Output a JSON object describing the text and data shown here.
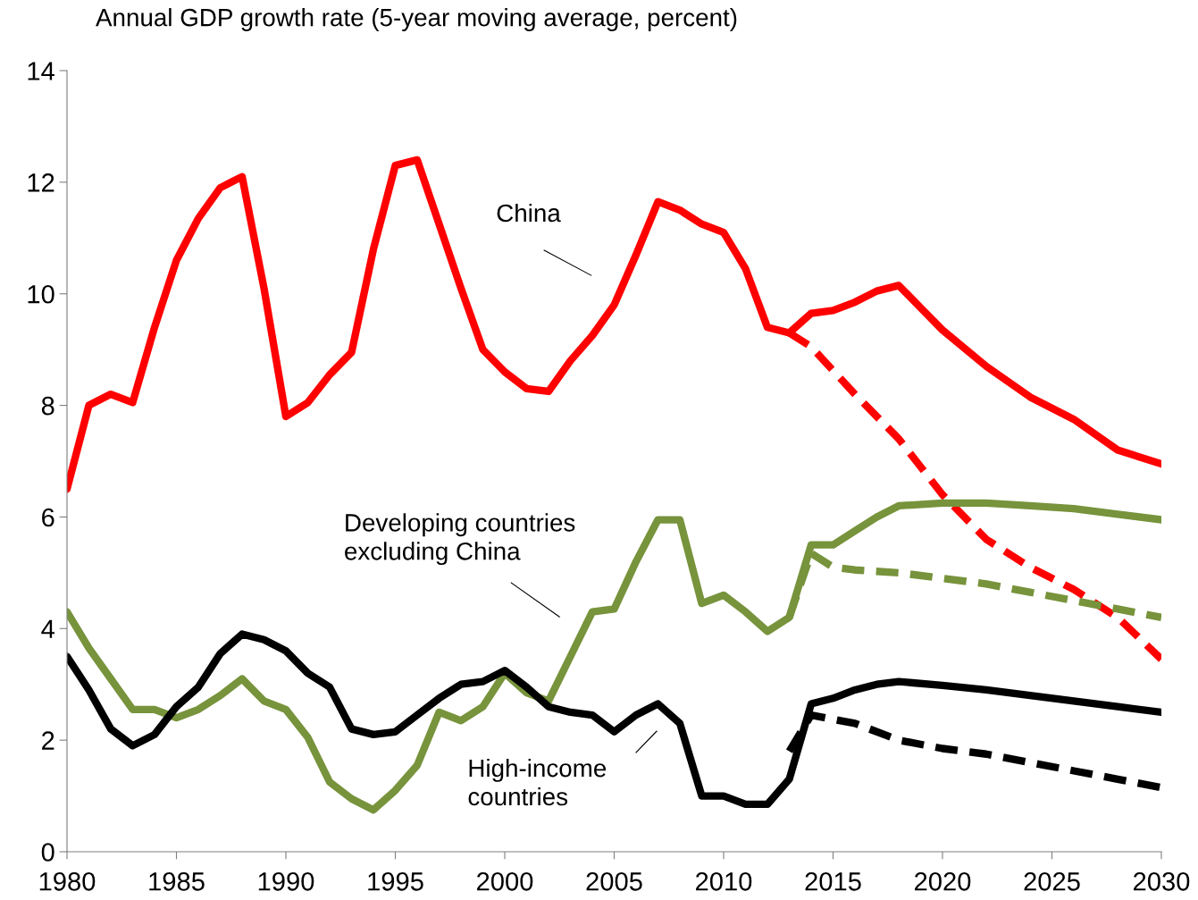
{
  "chart_data": {
    "type": "line",
    "title": "Annual GDP growth rate (5-year moving average, percent)",
    "xlim": [
      1980,
      2030
    ],
    "xticks": [
      1980,
      1985,
      1990,
      1995,
      2000,
      2005,
      2010,
      2015,
      2020,
      2025,
      2030
    ],
    "ylim": [
      0,
      14
    ],
    "yticks": [
      0,
      2,
      4,
      6,
      8,
      10,
      12,
      14
    ],
    "grid": false,
    "legend": false,
    "marker": "none",
    "series": [
      {
        "name": "China",
        "color": "#ff0000",
        "line_style": "solid",
        "x": [
          1980,
          1981,
          1982,
          1983,
          1984,
          1985,
          1986,
          1987,
          1988,
          1989,
          1990,
          1991,
          1992,
          1993,
          1994,
          1995,
          1996,
          1997,
          1998,
          1999,
          2000,
          2001,
          2002,
          2003,
          2004,
          2005,
          2006,
          2007,
          2008,
          2009,
          2010,
          2011,
          2012,
          2013,
          2014,
          2015,
          2016,
          2017,
          2018,
          2019,
          2020,
          2022,
          2024,
          2026,
          2028,
          2030
        ],
        "values": [
          6.5,
          8.0,
          8.2,
          8.05,
          9.4,
          10.6,
          11.35,
          11.9,
          12.1,
          10.1,
          7.8,
          8.05,
          8.55,
          8.95,
          10.8,
          12.3,
          12.4,
          11.25,
          10.1,
          9.0,
          8.6,
          8.3,
          8.25,
          8.8,
          9.25,
          9.8,
          10.7,
          11.65,
          11.5,
          11.25,
          11.1,
          10.45,
          9.4,
          9.3,
          9.65,
          9.7,
          9.85,
          10.05,
          10.15,
          9.75,
          9.35,
          8.7,
          8.15,
          7.75,
          7.2,
          6.95
        ]
      },
      {
        "color": "#ff0000",
        "line_style": "dashed",
        "x": [
          2013,
          2014,
          2016,
          2018,
          2020,
          2022,
          2024,
          2026,
          2028,
          2030
        ],
        "values": [
          9.3,
          9.05,
          8.2,
          7.4,
          6.4,
          5.6,
          5.1,
          4.7,
          4.2,
          3.45
        ]
      },
      {
        "name": "Developing countries excluding China",
        "color": "#77933c",
        "line_style": "solid",
        "x": [
          1980,
          1981,
          1982,
          1983,
          1984,
          1985,
          1986,
          1987,
          1988,
          1989,
          1990,
          1991,
          1992,
          1993,
          1994,
          1995,
          1996,
          1997,
          1998,
          1999,
          2000,
          2001,
          2002,
          2003,
          2004,
          2005,
          2006,
          2007,
          2008,
          2009,
          2010,
          2011,
          2012,
          2013,
          2014,
          2015,
          2016,
          2017,
          2018,
          2020,
          2022,
          2024,
          2026,
          2028,
          2030
        ],
        "values": [
          4.3,
          3.65,
          3.1,
          2.55,
          2.55,
          2.4,
          2.55,
          2.8,
          3.1,
          2.7,
          2.55,
          2.05,
          1.25,
          0.95,
          0.75,
          1.1,
          1.55,
          2.5,
          2.35,
          2.6,
          3.2,
          2.85,
          2.7,
          3.5,
          4.3,
          4.35,
          5.2,
          5.95,
          5.95,
          4.45,
          4.6,
          4.3,
          3.95,
          4.2,
          5.5,
          5.5,
          5.75,
          6.0,
          6.2,
          6.25,
          6.25,
          6.2,
          6.15,
          6.05,
          5.95
        ]
      },
      {
        "color": "#77933c",
        "line_style": "dashed",
        "x": [
          2013,
          2014,
          2015,
          2016,
          2018,
          2020,
          2022,
          2024,
          2026,
          2028,
          2030
        ],
        "values": [
          4.2,
          5.35,
          5.1,
          5.05,
          5.0,
          4.9,
          4.8,
          4.65,
          4.5,
          4.35,
          4.2
        ]
      },
      {
        "name": "High-income countries",
        "color": "#000000",
        "line_style": "solid",
        "x": [
          1980,
          1981,
          1982,
          1983,
          1984,
          1985,
          1986,
          1987,
          1988,
          1989,
          1990,
          1991,
          1992,
          1993,
          1994,
          1995,
          1996,
          1997,
          1998,
          1999,
          2000,
          2001,
          2002,
          2003,
          2004,
          2005,
          2006,
          2007,
          2008,
          2009,
          2010,
          2011,
          2012,
          2013,
          2014,
          2015,
          2016,
          2017,
          2018,
          2020,
          2022,
          2024,
          2026,
          2028,
          2030
        ],
        "values": [
          3.5,
          2.9,
          2.2,
          1.9,
          2.1,
          2.6,
          2.95,
          3.55,
          3.9,
          3.8,
          3.6,
          3.2,
          2.95,
          2.2,
          2.1,
          2.15,
          2.45,
          2.75,
          3.0,
          3.05,
          3.25,
          2.95,
          2.6,
          2.5,
          2.45,
          2.15,
          2.45,
          2.65,
          2.3,
          1.0,
          1.0,
          0.85,
          0.85,
          1.3,
          2.65,
          2.75,
          2.9,
          3.0,
          3.05,
          2.98,
          2.9,
          2.8,
          2.7,
          2.6,
          2.5
        ]
      },
      {
        "color": "#000000",
        "line_style": "dashed",
        "x": [
          2013,
          2014,
          2016,
          2018,
          2020,
          2022,
          2024,
          2026,
          2028,
          2030
        ],
        "values": [
          1.8,
          2.45,
          2.3,
          2.0,
          1.85,
          1.75,
          1.6,
          1.45,
          1.3,
          1.15
        ]
      }
    ]
  }
}
